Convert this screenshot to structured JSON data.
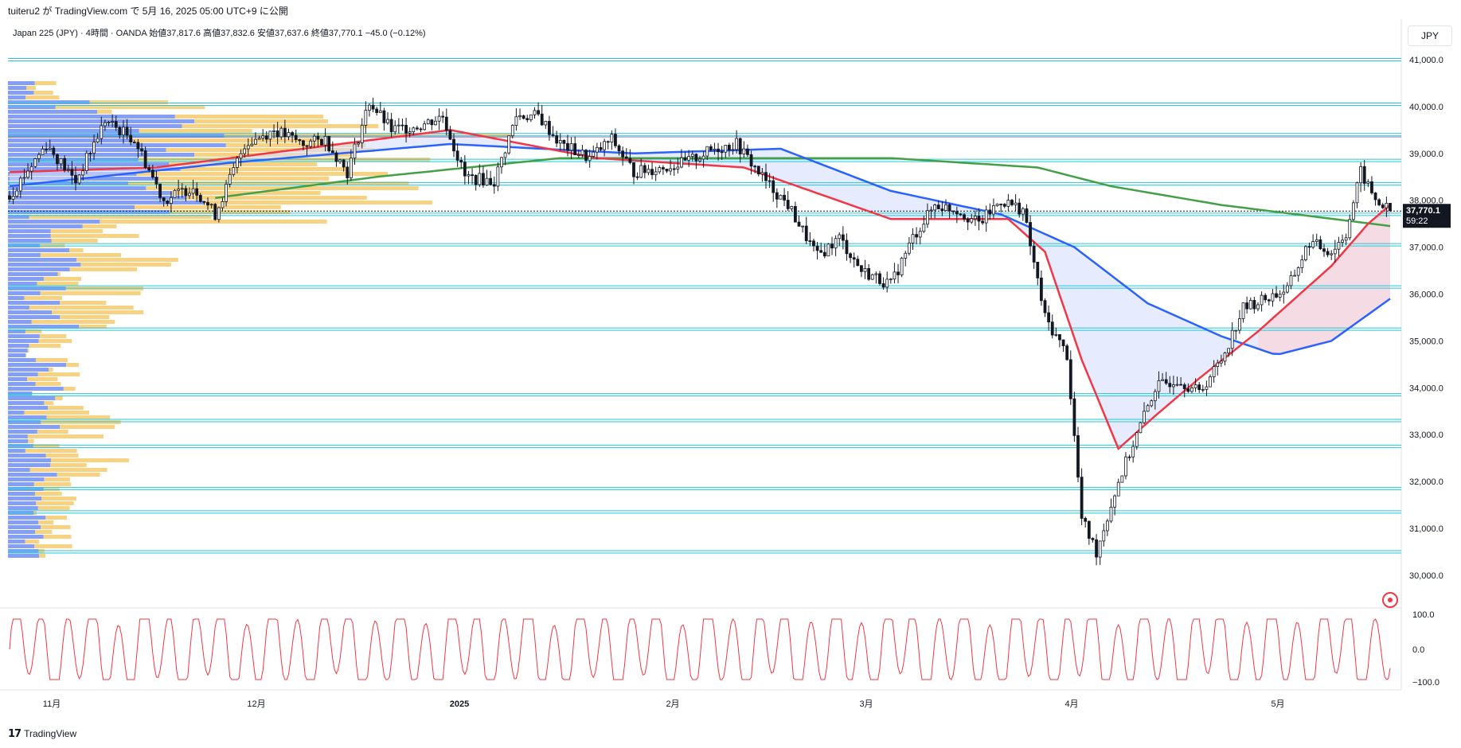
{
  "header": {
    "publish_line": "tuiteru2 が TradingView.com で 5月 16, 2025 05:00 UTC+9 に公開"
  },
  "legend": {
    "symbol": "Japan 225 (JPY) · 4時間 · OANDA",
    "open_label": "始値",
    "open": "37,817.6",
    "high_label": "高値",
    "high": "37,832.6",
    "low_label": "安値",
    "low": "37,637.6",
    "close_label": "終値",
    "close": "37,770.1",
    "change": "−45.0 (−0.12%)"
  },
  "currency_selector": "JPY",
  "price_axis": {
    "labels": [
      "41,000.0",
      "40,000.0",
      "39,000.0",
      "38,000.0",
      "37,000.0",
      "36,000.0",
      "35,000.0",
      "34,000.0",
      "33,000.0",
      "32,000.0",
      "31,000.0",
      "30,000.0"
    ],
    "current_price": "37,770.1",
    "countdown": "59:22"
  },
  "oscillator_axis": {
    "labels": [
      "100.0",
      "0.0",
      "−100.0"
    ]
  },
  "time_axis": {
    "labels": [
      "11月",
      "12月",
      "2025",
      "2月",
      "3月",
      "4月",
      "5月"
    ]
  },
  "footer": {
    "brand": "TradingView"
  },
  "colors": {
    "candles": "#131722",
    "ema_short": "#f23645",
    "ema_mid": "#2962ff",
    "ema_long": "#43a047",
    "horizontal_levels": "#26c6da",
    "volume_profile_up": "#5b7ff0",
    "volume_profile_down": "#f6c35a",
    "oscillator": "#f23645"
  },
  "chart_data": {
    "type": "candlestick",
    "title": "",
    "ylim": [
      29500,
      41500
    ],
    "x": [
      "11月",
      "12月",
      "2025",
      "2月",
      "3月",
      "4月",
      "5月"
    ],
    "close_path": [
      [
        0,
        38100
      ],
      [
        10,
        39200
      ],
      [
        18,
        38400
      ],
      [
        26,
        39700
      ],
      [
        34,
        39300
      ],
      [
        42,
        38000
      ],
      [
        50,
        38300
      ],
      [
        56,
        37700
      ],
      [
        64,
        39200
      ],
      [
        72,
        39500
      ],
      [
        80,
        39200
      ],
      [
        86,
        39300
      ],
      [
        92,
        38600
      ],
      [
        98,
        40100
      ],
      [
        104,
        39500
      ],
      [
        112,
        39600
      ],
      [
        118,
        39800
      ],
      [
        124,
        38500
      ],
      [
        132,
        38400
      ],
      [
        138,
        39800
      ],
      [
        144,
        39800
      ],
      [
        150,
        39200
      ],
      [
        158,
        38900
      ],
      [
        164,
        39300
      ],
      [
        170,
        38600
      ],
      [
        178,
        38700
      ],
      [
        184,
        38800
      ],
      [
        192,
        39100
      ],
      [
        198,
        39200
      ],
      [
        206,
        38400
      ],
      [
        212,
        37900
      ],
      [
        220,
        36800
      ],
      [
        226,
        37200
      ],
      [
        232,
        36500
      ],
      [
        240,
        36200
      ],
      [
        246,
        37200
      ],
      [
        252,
        37900
      ],
      [
        258,
        37800
      ],
      [
        264,
        37500
      ],
      [
        270,
        38000
      ],
      [
        276,
        37800
      ],
      [
        282,
        35500
      ],
      [
        288,
        34700
      ],
      [
        292,
        31200
      ],
      [
        296,
        30500
      ],
      [
        302,
        32000
      ],
      [
        306,
        32800
      ],
      [
        312,
        34000
      ],
      [
        318,
        34200
      ],
      [
        324,
        33900
      ],
      [
        330,
        34600
      ],
      [
        336,
        35700
      ],
      [
        342,
        35900
      ],
      [
        348,
        36100
      ],
      [
        354,
        37100
      ],
      [
        360,
        36900
      ],
      [
        364,
        37300
      ],
      [
        368,
        38600
      ],
      [
        372,
        38000
      ],
      [
        376,
        37770
      ]
    ],
    "ema_short": [
      [
        0,
        38600
      ],
      [
        40,
        38700
      ],
      [
        80,
        39100
      ],
      [
        120,
        39500
      ],
      [
        160,
        38900
      ],
      [
        200,
        38700
      ],
      [
        240,
        37600
      ],
      [
        272,
        37600
      ],
      [
        282,
        36900
      ],
      [
        292,
        34600
      ],
      [
        302,
        32700
      ],
      [
        312,
        33400
      ],
      [
        324,
        34200
      ],
      [
        340,
        35200
      ],
      [
        360,
        36600
      ],
      [
        370,
        37500
      ],
      [
        376,
        37900
      ]
    ],
    "ema_mid": [
      [
        0,
        38300
      ],
      [
        60,
        38800
      ],
      [
        120,
        39200
      ],
      [
        170,
        39000
      ],
      [
        210,
        39100
      ],
      [
        240,
        38200
      ],
      [
        270,
        37700
      ],
      [
        290,
        37000
      ],
      [
        310,
        35800
      ],
      [
        330,
        35100
      ],
      [
        345,
        34700
      ],
      [
        360,
        35000
      ],
      [
        376,
        35900
      ]
    ],
    "ema_long": [
      [
        56,
        38050
      ],
      [
        100,
        38500
      ],
      [
        150,
        38900
      ],
      [
        200,
        38900
      ],
      [
        240,
        38900
      ],
      [
        280,
        38700
      ],
      [
        300,
        38300
      ],
      [
        330,
        37900
      ],
      [
        376,
        37450
      ]
    ],
    "horizontal_levels": [
      41000,
      40050,
      39400,
      38850,
      38350,
      37700,
      37050,
      36150,
      35250,
      33850,
      33300,
      32750,
      31850,
      31350,
      30500
    ],
    "oscillator": {
      "range": [
        -100,
        100
      ]
    }
  }
}
